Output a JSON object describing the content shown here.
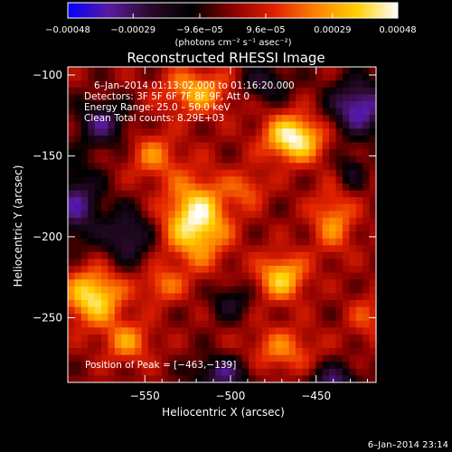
{
  "chart_data": {
    "type": "heatmap",
    "title": "Reconstructed RHESSI Image",
    "xlabel": "Heliocentric X (arcsec)",
    "ylabel": "Heliocentric Y (arcsec)",
    "x_range": [
      -595,
      -415
    ],
    "y_range": [
      -290,
      -95
    ],
    "x_ticks": [
      -550,
      -500,
      -450
    ],
    "y_ticks": [
      -100,
      -150,
      -200,
      -250
    ],
    "x_tick_labels": [
      "−550",
      "−500",
      "−450"
    ],
    "y_tick_labels": [
      "−100",
      "−150",
      "−200",
      "−250"
    ],
    "colorbar": {
      "range": [
        -0.00048,
        0.00048
      ],
      "ticks": [
        -0.00048,
        -0.00029,
        -9.6e-05,
        9.6e-05,
        0.00029,
        0.00048
      ],
      "tick_labels": [
        "−0.00048",
        "−0.00029",
        "−9.6e−05",
        "9.6e−05",
        "0.00029",
        "0.00048"
      ],
      "units": "(photons cm⁻² s⁻¹ asec⁻²)",
      "colors": [
        "#0000ff",
        "#5a1aa0",
        "#2a0a2a",
        "#000000",
        "#8a0000",
        "#e02000",
        "#ff8000",
        "#ffd000",
        "#ffffff"
      ]
    },
    "annotations": [
      "6–Jan–2014 01:13:02.000 to 01:16:20.000",
      "Detectors: 3F 5F 6F 7F 8F 9F, Att 0",
      "Energy Range: 25.0 – 50.0 keV",
      "Clean    Total counts: 8.29E+03"
    ],
    "peak_label": "Position of Peak = [−463,−139]",
    "peak_position": [
      -463,
      -139
    ],
    "sources": [
      {
        "x": -520,
        "y": -190,
        "amp": 0.00047,
        "sx": 13,
        "sy": 18
      },
      {
        "x": -463,
        "y": -139,
        "amp": 0.00048,
        "sx": 12,
        "sy": 10
      },
      {
        "x": -470,
        "y": -225,
        "amp": 0.00036,
        "sx": 10,
        "sy": 10
      },
      {
        "x": -580,
        "y": -237,
        "amp": 0.00042,
        "sx": 12,
        "sy": 12
      },
      {
        "x": -440,
        "y": -190,
        "amp": 0.00025,
        "sx": 9,
        "sy": 14
      },
      {
        "x": -520,
        "y": -110,
        "amp": 0.0003,
        "sx": 14,
        "sy": 10
      },
      {
        "x": -560,
        "y": -265,
        "amp": 0.00025,
        "sx": 10,
        "sy": 9
      },
      {
        "x": -470,
        "y": -270,
        "amp": 0.00022,
        "sx": 14,
        "sy": 10
      },
      {
        "x": -545,
        "y": -150,
        "amp": 0.00022,
        "sx": 10,
        "sy": 10
      },
      {
        "x": -490,
        "y": -170,
        "amp": 0.00018,
        "sx": 8,
        "sy": 8
      },
      {
        "x": -540,
        "y": -230,
        "amp": 0.0002,
        "sx": 9,
        "sy": 8
      },
      {
        "x": -420,
        "y": -250,
        "amp": 0.00015,
        "sx": 8,
        "sy": 10
      },
      {
        "x": -590,
        "y": -180,
        "amp": -0.00032,
        "sx": 10,
        "sy": 16
      },
      {
        "x": -425,
        "y": -120,
        "amp": -0.0004,
        "sx": 12,
        "sy": 12
      },
      {
        "x": -560,
        "y": -200,
        "amp": -0.00028,
        "sx": 10,
        "sy": 12
      },
      {
        "x": -505,
        "y": -285,
        "amp": -0.0003,
        "sx": 12,
        "sy": 8
      },
      {
        "x": -440,
        "y": -290,
        "amp": -0.0003,
        "sx": 10,
        "sy": 8
      },
      {
        "x": -480,
        "y": -105,
        "amp": -0.00022,
        "sx": 10,
        "sy": 8
      },
      {
        "x": -575,
        "y": -130,
        "amp": -0.0003,
        "sx": 10,
        "sy": 10
      },
      {
        "x": -500,
        "y": -240,
        "amp": -0.0002,
        "sx": 8,
        "sy": 8
      },
      {
        "x": -430,
        "y": -160,
        "amp": -0.00018,
        "sx": 6,
        "sy": 8
      }
    ]
  },
  "footer": {
    "timestamp": "6–Jan–2014 23:14"
  }
}
